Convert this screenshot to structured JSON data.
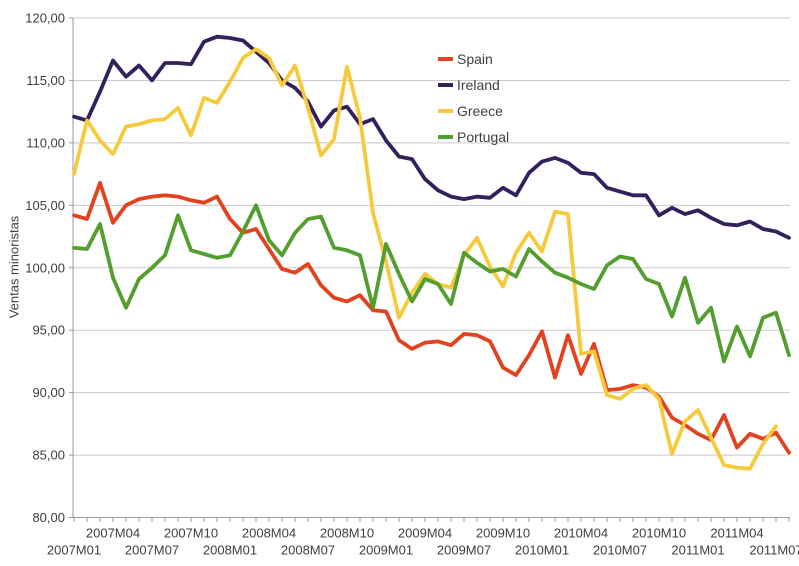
{
  "chart_data": {
    "type": "line",
    "title": "",
    "xlabel": "",
    "ylabel": "Ventas minoristas",
    "ylim": [
      80,
      120
    ],
    "y_tick_step": 5,
    "grid": true,
    "legend_position": "inside-top-center",
    "colors": {
      "grid": "#C8C8C8",
      "axis": "#9A9A9A",
      "text": "#3F3F3F",
      "background": "#FFFFFF"
    },
    "y_ticks": [
      {
        "value": 80,
        "label": "80,00"
      },
      {
        "value": 85,
        "label": "85,00"
      },
      {
        "value": 90,
        "label": "90,00"
      },
      {
        "value": 95,
        "label": "95,00"
      },
      {
        "value": 100,
        "label": "100,00"
      },
      {
        "value": 105,
        "label": "105,00"
      },
      {
        "value": 110,
        "label": "110,00"
      },
      {
        "value": 115,
        "label": "115,00"
      },
      {
        "value": 120,
        "label": "120,00"
      }
    ],
    "x_ticks": [
      {
        "index": 0,
        "label": "2007M01",
        "row": "lower"
      },
      {
        "index": 3,
        "label": "2007M04",
        "row": "upper"
      },
      {
        "index": 6,
        "label": "2007M07",
        "row": "lower"
      },
      {
        "index": 9,
        "label": "2007M10",
        "row": "upper"
      },
      {
        "index": 12,
        "label": "2008M01",
        "row": "lower"
      },
      {
        "index": 15,
        "label": "2008M04",
        "row": "upper"
      },
      {
        "index": 18,
        "label": "2008M07",
        "row": "lower"
      },
      {
        "index": 21,
        "label": "2008M10",
        "row": "upper"
      },
      {
        "index": 24,
        "label": "2009M01",
        "row": "lower"
      },
      {
        "index": 27,
        "label": "2009M04",
        "row": "upper"
      },
      {
        "index": 30,
        "label": "2009M07",
        "row": "lower"
      },
      {
        "index": 33,
        "label": "2009M10",
        "row": "upper"
      },
      {
        "index": 36,
        "label": "2010M01",
        "row": "lower"
      },
      {
        "index": 39,
        "label": "2010M04",
        "row": "upper"
      },
      {
        "index": 42,
        "label": "2010M07",
        "row": "lower"
      },
      {
        "index": 45,
        "label": "2010M10",
        "row": "upper"
      },
      {
        "index": 48,
        "label": "2011M01",
        "row": "lower"
      },
      {
        "index": 51,
        "label": "2011M04",
        "row": "upper"
      },
      {
        "index": 54,
        "label": "2011M07",
        "row": "lower"
      }
    ],
    "categories": [
      "2007M01",
      "2007M02",
      "2007M03",
      "2007M04",
      "2007M05",
      "2007M06",
      "2007M07",
      "2007M08",
      "2007M09",
      "2007M10",
      "2007M11",
      "2007M12",
      "2008M01",
      "2008M02",
      "2008M03",
      "2008M04",
      "2008M05",
      "2008M06",
      "2008M07",
      "2008M08",
      "2008M09",
      "2008M10",
      "2008M11",
      "2008M12",
      "2009M01",
      "2009M02",
      "2009M03",
      "2009M04",
      "2009M05",
      "2009M06",
      "2009M07",
      "2009M08",
      "2009M09",
      "2009M10",
      "2009M11",
      "2009M12",
      "2010M01",
      "2010M02",
      "2010M03",
      "2010M04",
      "2010M05",
      "2010M06",
      "2010M07",
      "2010M08",
      "2010M09",
      "2010M10",
      "2010M11",
      "2010M12",
      "2011M01",
      "2011M02",
      "2011M03",
      "2011M04",
      "2011M05",
      "2011M06",
      "2011M07",
      "2011M08"
    ],
    "series": [
      {
        "name": "Spain",
        "color": "#E2431E",
        "values": [
          104.2,
          103.9,
          106.8,
          103.6,
          105.0,
          105.5,
          105.7,
          105.8,
          105.7,
          105.4,
          105.2,
          105.7,
          103.9,
          102.8,
          103.1,
          101.5,
          99.9,
          99.6,
          100.3,
          98.6,
          97.6,
          97.3,
          97.8,
          96.6,
          96.5,
          94.2,
          93.5,
          94.0,
          94.1,
          93.8,
          94.7,
          94.6,
          94.1,
          92.0,
          91.4,
          93.0,
          94.9,
          91.2,
          94.6,
          91.5,
          93.9,
          90.2,
          90.3,
          90.6,
          90.4,
          89.7,
          88.0,
          87.4,
          86.7,
          86.2,
          88.2,
          85.6,
          86.7,
          86.3,
          86.8,
          85.2
        ]
      },
      {
        "name": "Ireland",
        "color": "#33205C",
        "values": [
          112.1,
          111.8,
          114.1,
          116.6,
          115.3,
          116.2,
          115.0,
          116.4,
          116.4,
          116.3,
          118.1,
          118.5,
          118.4,
          118.2,
          117.3,
          116.4,
          115.0,
          114.4,
          113.3,
          111.3,
          112.6,
          112.9,
          111.5,
          111.9,
          110.2,
          108.9,
          108.7,
          107.1,
          106.2,
          105.7,
          105.5,
          105.7,
          105.6,
          106.4,
          105.8,
          107.6,
          108.5,
          108.8,
          108.4,
          107.6,
          107.5,
          106.4,
          106.1,
          105.8,
          105.8,
          104.2,
          104.8,
          104.3,
          104.6,
          104.0,
          103.5,
          103.4,
          103.7,
          103.1,
          102.9,
          102.4
        ]
      },
      {
        "name": "Greece",
        "color": "#F7CA3D",
        "values": [
          107.5,
          111.8,
          110.2,
          109.1,
          111.3,
          111.5,
          111.8,
          111.9,
          112.8,
          110.6,
          113.6,
          113.2,
          114.9,
          116.8,
          117.5,
          116.8,
          114.6,
          116.2,
          112.8,
          109.0,
          110.3,
          116.1,
          112.0,
          104.4,
          100.5,
          96.0,
          98.0,
          99.5,
          98.7,
          98.4,
          101.0,
          102.4,
          100.1,
          98.5,
          101.2,
          102.8,
          101.3,
          104.5,
          104.3,
          93.1,
          93.3,
          89.8,
          89.5,
          90.3,
          90.6,
          89.5,
          85.1,
          87.7,
          88.6,
          86.4,
          84.2,
          84.0,
          83.9,
          85.9,
          87.3,
          null
        ]
      },
      {
        "name": "Portugal",
        "color": "#549E2F",
        "values": [
          101.6,
          101.5,
          103.5,
          99.2,
          96.8,
          99.1,
          100.0,
          101.0,
          104.2,
          101.4,
          101.1,
          100.8,
          101.0,
          102.9,
          105.0,
          102.2,
          101.0,
          102.8,
          103.9,
          104.1,
          101.6,
          101.4,
          101.0,
          96.8,
          101.9,
          99.5,
          97.3,
          99.1,
          98.7,
          97.1,
          101.2,
          100.4,
          99.7,
          99.9,
          99.3,
          101.5,
          100.5,
          99.6,
          99.2,
          98.7,
          98.3,
          100.2,
          100.9,
          100.7,
          99.1,
          98.7,
          96.1,
          99.2,
          95.6,
          96.8,
          92.5,
          95.3,
          92.9,
          96.0,
          96.4,
          93.0
        ]
      }
    ]
  }
}
